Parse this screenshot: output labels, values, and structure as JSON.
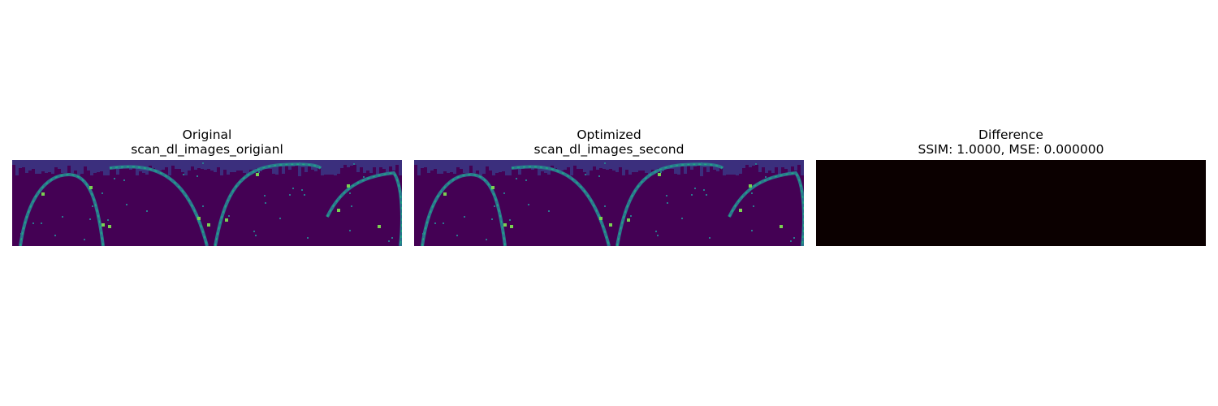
{
  "panels": [
    {
      "title": "Original",
      "subtitle": "scan_dl_images_origianl",
      "image": "viridis-scan"
    },
    {
      "title": "Optimized",
      "subtitle": "scan_dl_images_second",
      "image": "viridis-scan"
    },
    {
      "title": "Difference",
      "subtitle": "SSIM: 1.0000, MSE: 0.000000",
      "image": "hot-zero-difference"
    }
  ],
  "colors": {
    "background": "#ffffff",
    "scan_background": "#440154",
    "scan_band": "#3b2f7d",
    "scan_edge": "#2a788e",
    "scan_highlight": "#22a884",
    "scan_bright": "#7ad151",
    "difference_fill": "#0b0000"
  }
}
